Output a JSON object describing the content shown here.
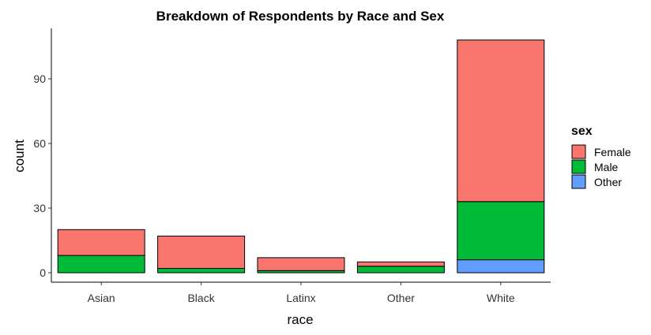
{
  "chart_data": {
    "type": "bar",
    "stacked": true,
    "title": "Breakdown of Respondents by Race and Sex",
    "xlabel": "race",
    "ylabel": "count",
    "categories": [
      "Asian",
      "Black",
      "Latinx",
      "Other",
      "White"
    ],
    "series": [
      {
        "name": "Other",
        "color": "#619CFF",
        "values": [
          0,
          0,
          0,
          0,
          6
        ]
      },
      {
        "name": "Male",
        "color": "#00BA38",
        "values": [
          8,
          2,
          1,
          3,
          27
        ]
      },
      {
        "name": "Female",
        "color": "#F8766D",
        "values": [
          12,
          15,
          6,
          2,
          75
        ]
      }
    ],
    "ylim": [
      0,
      111.5
    ],
    "yticks": [
      0,
      30,
      60,
      90
    ],
    "legend": {
      "title": "sex",
      "position": "right",
      "entries": [
        {
          "label": "Female",
          "color": "#F8766D"
        },
        {
          "label": "Male",
          "color": "#00BA38"
        },
        {
          "label": "Other",
          "color": "#619CFF"
        }
      ]
    },
    "grid": false
  }
}
